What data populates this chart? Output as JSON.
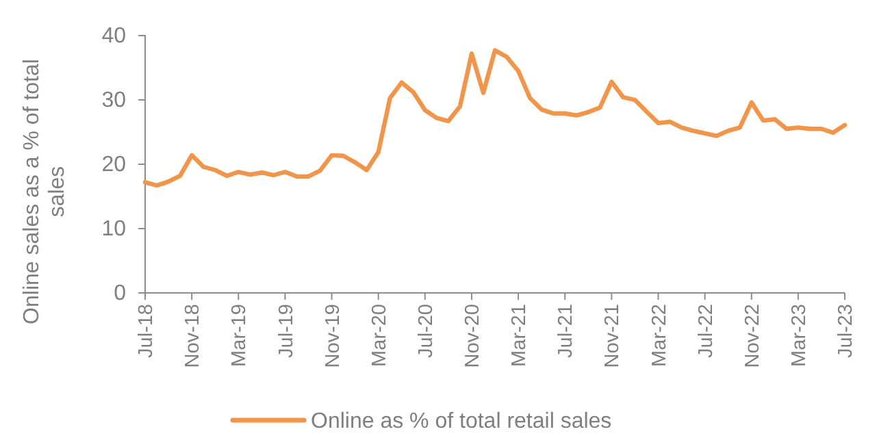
{
  "chart_data": {
    "type": "line",
    "ylabel": "Online sales as a % of total sales",
    "categories": [
      "Jul-18",
      null,
      null,
      null,
      "Nov-18",
      null,
      null,
      null,
      "Mar-19",
      null,
      null,
      null,
      "Jul-19",
      null,
      null,
      null,
      "Nov-19",
      null,
      null,
      null,
      "Mar-20",
      null,
      null,
      null,
      "Jul-20",
      null,
      null,
      null,
      "Nov-20",
      null,
      null,
      null,
      "Mar-21",
      null,
      null,
      null,
      "Jul-21",
      null,
      null,
      null,
      "Nov-21",
      null,
      null,
      null,
      "Mar-22",
      null,
      null,
      null,
      "Jul-22",
      null,
      null,
      null,
      "Nov-22",
      null,
      null,
      null,
      "Mar-23",
      null,
      null,
      null,
      "Jul-23"
    ],
    "series": [
      {
        "name": "Online as % of total retail sales",
        "color": "#f0954a",
        "values": [
          17.2,
          16.7,
          17.3,
          18.2,
          21.4,
          19.6,
          19.1,
          18.2,
          18.8,
          18.4,
          18.7,
          18.3,
          18.8,
          18.1,
          18.1,
          19.0,
          21.4,
          21.3,
          20.3,
          19.1,
          21.9,
          30.3,
          32.7,
          31.2,
          28.4,
          27.2,
          26.7,
          29.0,
          37.2,
          31.1,
          37.7,
          36.7,
          34.5,
          30.3,
          28.5,
          27.9,
          27.9,
          27.6,
          28.1,
          28.8,
          32.8,
          30.4,
          30.0,
          28.2,
          26.4,
          26.6,
          25.7,
          25.2,
          24.8,
          24.4,
          25.2,
          25.7,
          29.6,
          26.8,
          27.0,
          25.5,
          25.7,
          25.5,
          25.5,
          24.9,
          26.1
        ]
      }
    ],
    "ylim": [
      0,
      40
    ],
    "yticks": [
      0,
      10,
      20,
      30,
      40
    ],
    "grid": false,
    "legend": "bottom",
    "marker": "none",
    "line_style": "solid"
  }
}
